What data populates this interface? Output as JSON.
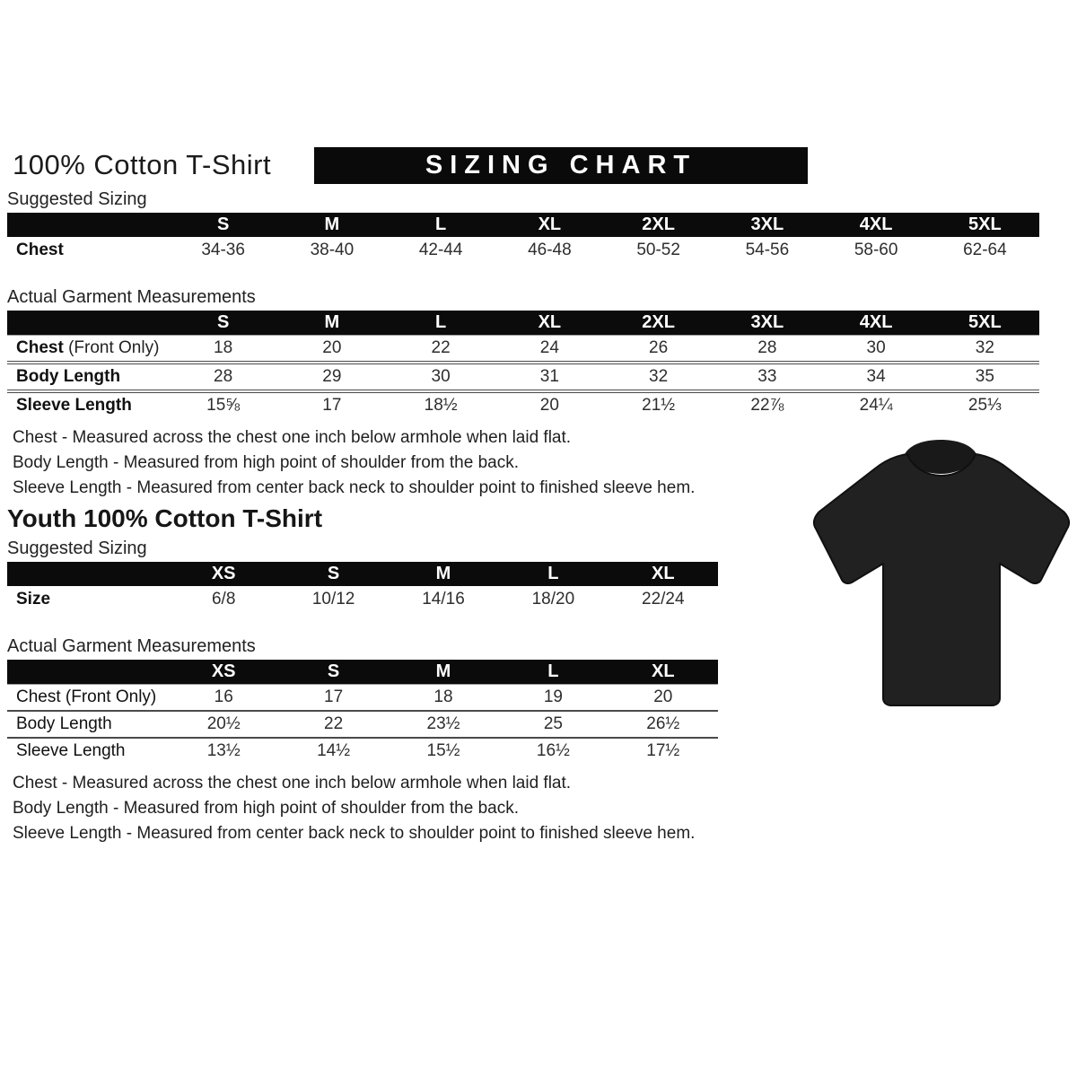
{
  "colors": {
    "banner_bg": "#0a0a0a",
    "header_bar_bg": "#0b0b0b",
    "tshirt_body": "#212121",
    "tshirt_collar": "#191919"
  },
  "adult": {
    "title": "100% Cotton T-Shirt",
    "banner": "SIZING CHART",
    "suggested_label": "Suggested Sizing",
    "actual_label": "Actual Garment Measurements",
    "suggested_table": {
      "columns": [
        "S",
        "M",
        "L",
        "XL",
        "2XL",
        "3XL",
        "4XL",
        "5XL"
      ],
      "rows": [
        {
          "label": "Chest",
          "suffix": "",
          "values": [
            "34-36",
            "38-40",
            "42-44",
            "46-48",
            "50-52",
            "54-56",
            "58-60",
            "62-64"
          ]
        }
      ]
    },
    "actual_table": {
      "columns": [
        "S",
        "M",
        "L",
        "XL",
        "2XL",
        "3XL",
        "4XL",
        "5XL"
      ],
      "rows": [
        {
          "label": "Chest",
          "suffix": " (Front Only)",
          "values": [
            "18",
            "20",
            "22",
            "24",
            "26",
            "28",
            "30",
            "32"
          ]
        },
        {
          "label": "Body Length",
          "suffix": "",
          "values": [
            "28",
            "29",
            "30",
            "31",
            "32",
            "33",
            "34",
            "35"
          ]
        },
        {
          "label": "Sleeve Length",
          "suffix": "",
          "values": [
            "15⅝",
            "17",
            "18½",
            "20",
            "21½",
            "22⅞",
            "24¼",
            "25⅓"
          ]
        }
      ]
    },
    "notes": [
      "Chest - Measured across the chest one inch below armhole when laid flat.",
      "Body Length - Measured from high point of shoulder from the back.",
      "Sleeve Length - Measured from center back neck to shoulder point to finished sleeve hem."
    ]
  },
  "youth": {
    "title": "Youth 100% Cotton T-Shirt",
    "suggested_label": "Suggested Sizing",
    "actual_label": "Actual Garment Measurements",
    "suggested_table": {
      "columns": [
        "XS",
        "S",
        "M",
        "L",
        "XL"
      ],
      "rows": [
        {
          "label": "Size",
          "suffix": "",
          "values": [
            "6/8",
            "10/12",
            "14/16",
            "18/20",
            "22/24"
          ]
        }
      ]
    },
    "actual_table": {
      "columns": [
        "XS",
        "S",
        "M",
        "L",
        "XL"
      ],
      "rows": [
        {
          "label": "Chest (Front Only)",
          "suffix": "",
          "values": [
            "16",
            "17",
            "18",
            "19",
            "20"
          ]
        },
        {
          "label": "Body Length",
          "suffix": "",
          "values": [
            "20½",
            "22",
            "23½",
            "25",
            "26½"
          ]
        },
        {
          "label": "Sleeve Length",
          "suffix": "",
          "values": [
            "13½",
            "14½",
            "15½",
            "16½",
            "17½"
          ]
        }
      ]
    },
    "notes": [
      "Chest - Measured across the chest one inch below armhole when laid flat.",
      "Body Length - Measured from high point of shoulder from the back.",
      "Sleeve Length - Measured from center back neck to shoulder point to finished sleeve hem."
    ]
  }
}
